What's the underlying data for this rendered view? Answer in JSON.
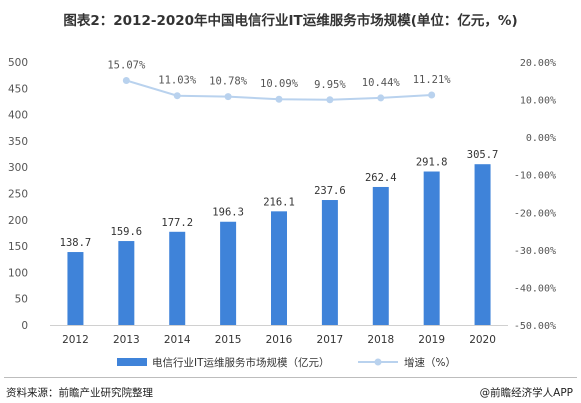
{
  "title": "图表2：2012-2020年中国电信行业IT运维服务市场规模(单位：亿元，%)",
  "footer": {
    "source": "资料来源：前瞻产业研究院整理",
    "credit": "@前瞻经济学人APP"
  },
  "colors": {
    "bar": "#3f83d9",
    "line": "#b9d2ee",
    "marker": "#b9d2ee"
  },
  "chart_data": {
    "type": "bar",
    "title": "图表2：2012-2020年中国电信行业IT运维服务市场规模(单位：亿元，%)",
    "categories": [
      "2012",
      "2013",
      "2014",
      "2015",
      "2016",
      "2017",
      "2018",
      "2019",
      "2020"
    ],
    "series": [
      {
        "name": "电信行业IT运维服务市场规模（亿元）",
        "type": "bar",
        "axis": "left",
        "values": [
          138.7,
          159.6,
          177.2,
          196.3,
          216.1,
          237.6,
          262.4,
          291.8,
          305.7
        ],
        "labels": [
          "138.7",
          "159.6",
          "177.2",
          "196.3",
          "216.1",
          "237.6",
          "262.4",
          "291.8",
          "305.7"
        ]
      },
      {
        "name": "增速（%）",
        "type": "line",
        "axis": "right",
        "values": [
          null,
          15.07,
          11.03,
          10.78,
          10.09,
          9.95,
          10.44,
          11.21,
          null
        ],
        "labels": [
          null,
          "15.07%",
          "11.03%",
          "10.78%",
          "10.09%",
          "9.95%",
          "10.44%",
          "11.21%",
          null
        ]
      }
    ],
    "y_left": {
      "lim": [
        0,
        500
      ],
      "ticks": [
        0,
        50,
        100,
        150,
        200,
        250,
        300,
        350,
        400,
        450,
        500
      ],
      "tick_labels": [
        "0",
        "50",
        "100",
        "150",
        "200",
        "250",
        "300",
        "350",
        "400",
        "450",
        "500"
      ]
    },
    "y_right": {
      "lim": [
        -50,
        20
      ],
      "ticks": [
        20,
        10,
        0,
        -10,
        -20,
        -30,
        -40,
        -50
      ],
      "tick_labels": [
        "20.00%",
        "10.00%",
        "0.00%",
        "-10.00%",
        "-20.00%",
        "-30.00%",
        "-40.00%",
        "-50.00%"
      ]
    },
    "grid": false,
    "legend": "bottom"
  }
}
